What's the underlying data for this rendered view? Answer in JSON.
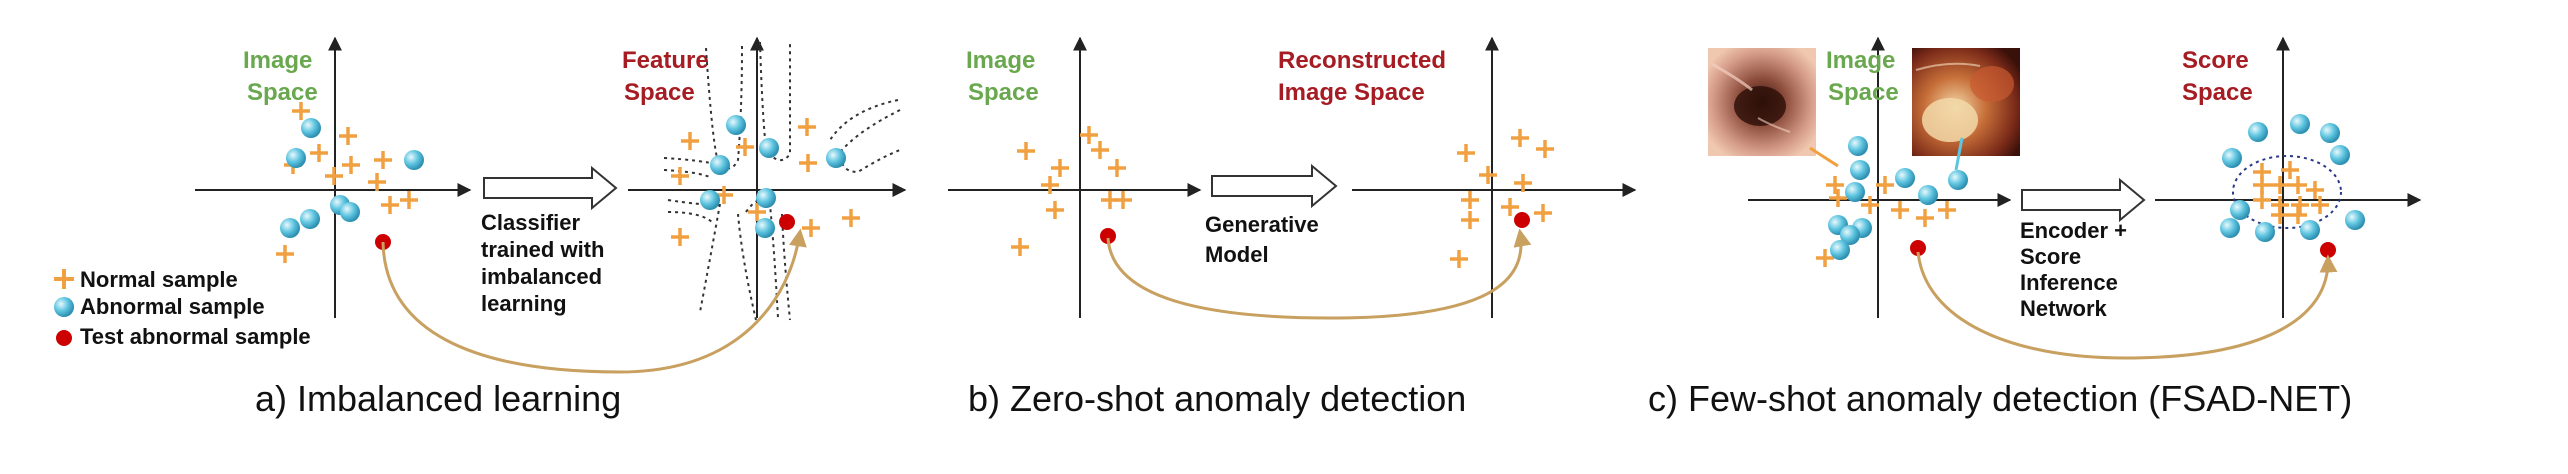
{
  "panel_a": {
    "image_space_title": [
      "Image",
      "Space"
    ],
    "feature_space_title": [
      "Feature",
      "Space"
    ],
    "arrow_label": [
      "Classifier",
      "trained with",
      "imbalanced",
      "learning"
    ],
    "legend": {
      "normal": "Normal sample",
      "abnormal": "Abnormal sample",
      "test": "Test abnormal sample"
    },
    "caption": "a) Imbalanced learning"
  },
  "panel_b": {
    "image_space_title": [
      "Image",
      "Space"
    ],
    "reconstructed_title": [
      "Reconstructed",
      "Image Space"
    ],
    "arrow_label": [
      "Generative",
      "Model"
    ],
    "caption": "b) Zero-shot anomaly detection"
  },
  "panel_c": {
    "image_space_title": [
      "Image",
      "Space"
    ],
    "score_space_title": [
      "Score",
      "Space"
    ],
    "arrow_label": [
      "Encoder +",
      "Score",
      "Inference",
      "Network"
    ],
    "caption": "c) Few-shot anomaly detection (FSAD-NET)"
  },
  "colors": {
    "normal": "#f0a040",
    "abnormal": "#5ec5e0",
    "test": "#cc0000",
    "green_title": "#6aa84f",
    "red_title": "#a61c23",
    "curve": "#c8a060"
  }
}
